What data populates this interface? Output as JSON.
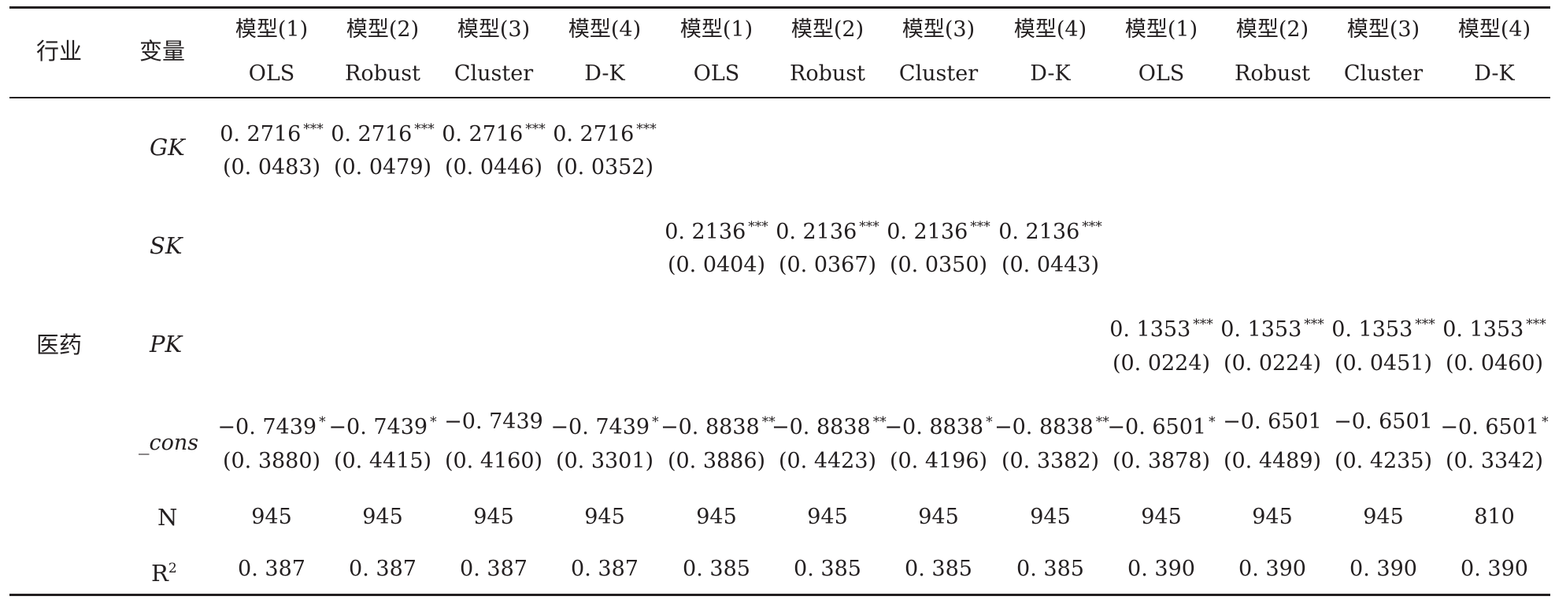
{
  "header": {
    "industry": "行业",
    "variable": "变量",
    "models": [
      "模型(1)",
      "模型(2)",
      "模型(3)",
      "模型(4)",
      "模型(1)",
      "模型(2)",
      "模型(3)",
      "模型(4)",
      "模型(1)",
      "模型(2)",
      "模型(3)",
      "模型(4)"
    ],
    "methods": [
      "OLS",
      "Robust",
      "Cluster",
      "D-K",
      "OLS",
      "Robust",
      "Cluster",
      "D-K",
      "OLS",
      "Robust",
      "Cluster",
      "D-K"
    ]
  },
  "industry_name": "医药",
  "variables": {
    "gk": "GK",
    "sk": "SK",
    "pk": "PK",
    "cons": "_cons",
    "n": "N",
    "r2": "R",
    "r2_sup": "2"
  },
  "rows": {
    "gk": {
      "coef": [
        "0. 2716",
        "0. 2716",
        "0. 2716",
        "0. 2716",
        "",
        "",
        "",
        "",
        "",
        "",
        "",
        ""
      ],
      "stars": [
        "***",
        "***",
        "***",
        "***",
        "",
        "",
        "",
        "",
        "",
        "",
        "",
        ""
      ],
      "se": [
        "(0. 0483)",
        "(0. 0479)",
        "(0. 0446)",
        "(0. 0352)",
        "",
        "",
        "",
        "",
        "",
        "",
        "",
        ""
      ]
    },
    "sk": {
      "coef": [
        "",
        "",
        "",
        "",
        "0. 2136",
        "0. 2136",
        "0. 2136",
        "0. 2136",
        "",
        "",
        "",
        ""
      ],
      "stars": [
        "",
        "",
        "",
        "",
        "***",
        "***",
        "***",
        "***",
        "",
        "",
        "",
        ""
      ],
      "se": [
        "",
        "",
        "",
        "",
        "(0. 0404)",
        "(0. 0367)",
        "(0. 0350)",
        "(0. 0443)",
        "",
        "",
        "",
        ""
      ]
    },
    "pk": {
      "coef": [
        "",
        "",
        "",
        "",
        "",
        "",
        "",
        "",
        "0. 1353",
        "0. 1353",
        "0. 1353",
        "0. 1353"
      ],
      "stars": [
        "",
        "",
        "",
        "",
        "",
        "",
        "",
        "",
        "***",
        "***",
        "***",
        "***"
      ],
      "se": [
        "",
        "",
        "",
        "",
        "",
        "",
        "",
        "",
        "(0. 0224)",
        "(0. 0224)",
        "(0. 0451)",
        "(0. 0460)"
      ]
    },
    "cons": {
      "coef": [
        "−0. 7439",
        "−0. 7439",
        "−0. 7439",
        "−0. 7439",
        "−0. 8838",
        "−0. 8838",
        "−0. 8838",
        "−0. 8838",
        "−0. 6501",
        "−0. 6501",
        "−0. 6501",
        "−0. 6501"
      ],
      "stars": [
        "*",
        "*",
        "",
        "*",
        "**",
        "**",
        "*",
        "**",
        "*",
        "",
        "",
        "*"
      ],
      "se": [
        "(0. 3880)",
        "(0. 4415)",
        "(0. 4160)",
        "(0. 3301)",
        "(0. 3886)",
        "(0. 4423)",
        "(0. 4196)",
        "(0. 3382)",
        "(0. 3878)",
        "(0. 4489)",
        "(0. 4235)",
        "(0. 3342)"
      ]
    },
    "n": [
      "945",
      "945",
      "945",
      "945",
      "945",
      "945",
      "945",
      "945",
      "945",
      "945",
      "945",
      "810"
    ],
    "r2": [
      "0. 387",
      "0. 387",
      "0. 387",
      "0. 387",
      "0. 385",
      "0. 385",
      "0. 385",
      "0. 385",
      "0. 390",
      "0. 390",
      "0. 390",
      "0. 390"
    ]
  }
}
